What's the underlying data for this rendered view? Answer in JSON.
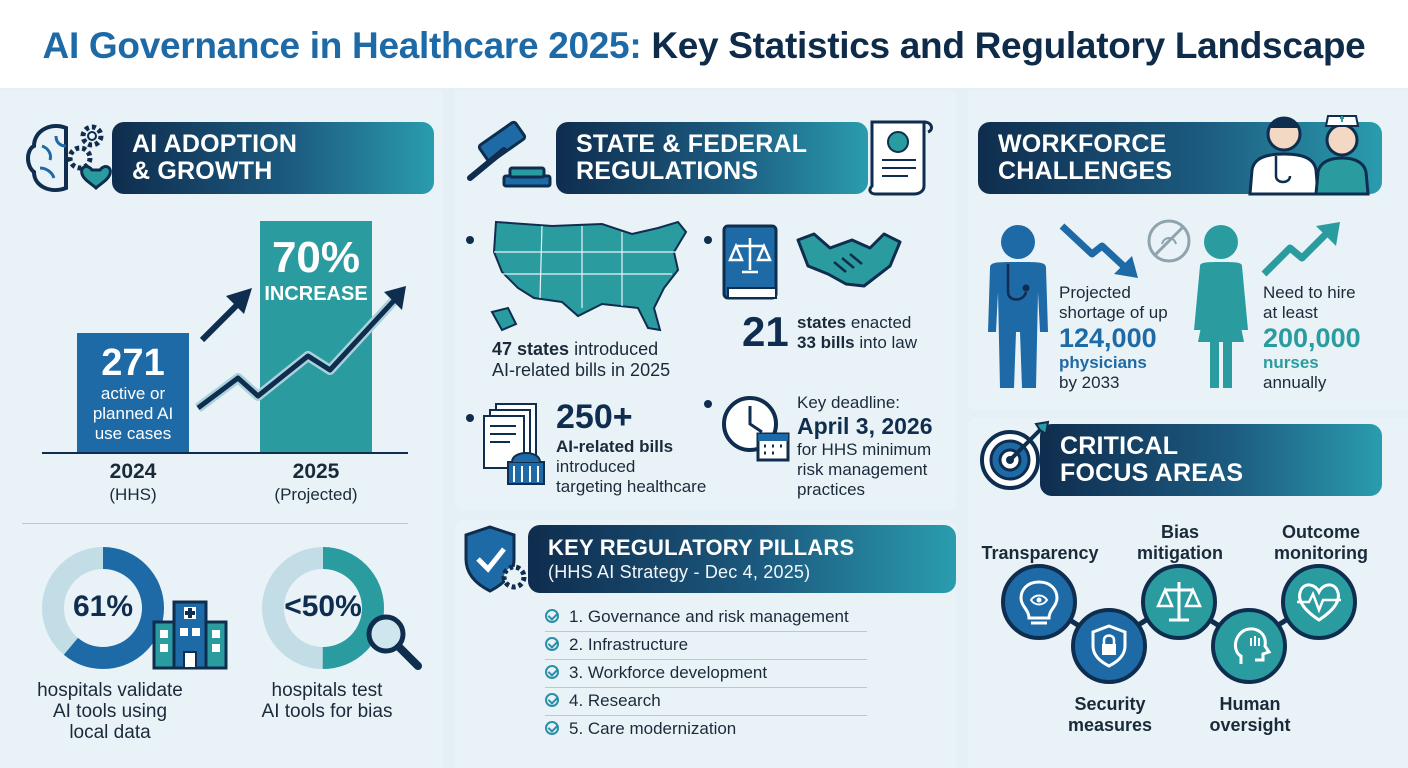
{
  "title": {
    "part1": "AI Governance in Healthcare 2025:",
    "part2": "Key Statistics and Regulatory Landscape"
  },
  "adoption": {
    "heading_line1": "AI ADOPTION",
    "heading_line2": "& GROWTH",
    "bar_2024": {
      "value": "271",
      "desc_line1": "active or",
      "desc_line2": "planned AI",
      "desc_line3": "use cases",
      "year": "2024",
      "note": "(HHS)"
    },
    "bar_2025": {
      "value": "70%",
      "desc": "INCREASE",
      "year": "2025",
      "note": "(Projected)"
    },
    "donut_validate": {
      "value": "61%",
      "fraction": 0.61,
      "label_line1": "hospitals validate",
      "label_line2": "AI tools using",
      "label_line3": "local data"
    },
    "donut_bias": {
      "value": "<50%",
      "fraction": 0.5,
      "label_line1": "hospitals test",
      "label_line2": "AI tools for bias"
    }
  },
  "regulations": {
    "heading_line1": "STATE & FEDERAL",
    "heading_line2": "REGULATIONS",
    "states_introduced": {
      "number": "47 states",
      "text1": "introduced",
      "text2": "AI-related bills in 2025"
    },
    "states_enacted": {
      "number": "21",
      "text1a": "states",
      "text1b": "enacted",
      "text2a": "33 bills",
      "text2b": "into law"
    },
    "bills": {
      "number": "250+",
      "text1": "AI-related bills",
      "text2": "introduced",
      "text3": "targeting healthcare"
    },
    "deadline": {
      "text1": "Key deadline:",
      "date": "April 3, 2026",
      "text2": "for HHS minimum",
      "text3": "risk management",
      "text4": "practices"
    }
  },
  "pillars": {
    "heading": "KEY REGULATORY PILLARS",
    "subheading": "(HHS AI Strategy - Dec 4, 2025)",
    "items": [
      "1. Governance and risk management",
      "2. Infrastructure",
      "3. Workforce development",
      "4. Research",
      "5. Care modernization"
    ]
  },
  "workforce": {
    "heading_line1": "WORKFORCE",
    "heading_line2": "CHALLENGES",
    "physicians": {
      "text1": "Projected",
      "text2": "shortage of up",
      "number": "124,000",
      "role": "physicians",
      "text3": "by 2033"
    },
    "nurses": {
      "text1": "Need to hire",
      "text2": "at least",
      "number": "200,000",
      "role": "nurses",
      "text3": "annually"
    }
  },
  "focus": {
    "heading_line1": "CRITICAL",
    "heading_line2": "FOCUS AREAS",
    "transparency": "Transparency",
    "bias_line1": "Bias",
    "bias_line2": "mitigation",
    "outcome_line1": "Outcome",
    "outcome_line2": "monitoring",
    "security_line1": "Security",
    "security_line2": "measures",
    "human_line1": "Human",
    "human_line2": "oversight"
  },
  "colors": {
    "navy": "#0f2d4e",
    "blue": "#1e6aa6",
    "teal": "#2a9ca0",
    "light_bg": "#e9f3f7"
  }
}
